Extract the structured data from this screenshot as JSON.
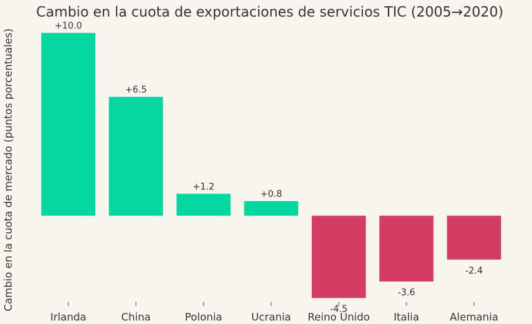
{
  "chart_data": {
    "type": "bar",
    "title": "Cambio en la cuota de exportaciones de servicios TIC (2005→2020)",
    "xlabel": "",
    "ylabel": "Cambio en la cuota de mercado (puntos porcentuales)",
    "categories": [
      "Irlanda",
      "China",
      "Polonia",
      "Ucrania",
      "Reino Unido",
      "Italia",
      "Alemania"
    ],
    "values": [
      10.0,
      6.5,
      1.2,
      0.8,
      -4.5,
      -3.6,
      -2.4
    ],
    "value_labels": [
      "+10.0",
      "+6.5",
      "+1.2",
      "+0.8",
      "-4.5",
      "-3.6",
      "-2.4"
    ],
    "ylim": [
      -4.6,
      10.4
    ],
    "grid": false,
    "legend": "none",
    "colors": {
      "positive": "#06d6a0",
      "negative": "#d33d62",
      "background": "#f8f5ef",
      "text": "#333333"
    }
  }
}
